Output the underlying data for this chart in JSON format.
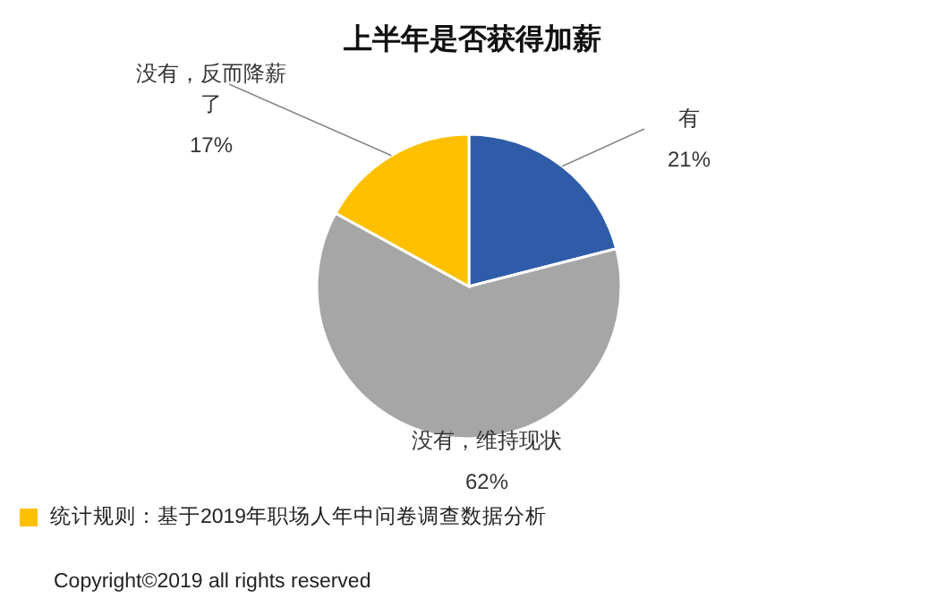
{
  "chart_data": {
    "type": "pie",
    "title": "上半年是否获得加薪",
    "categories": [
      "有",
      "没有，维持现状",
      "没有，反而降薪了"
    ],
    "values": [
      21,
      62,
      17
    ],
    "colors": [
      "#2f5ca8",
      "#a6a6a6",
      "#ffc000"
    ],
    "value_labels": [
      "21%",
      "62%",
      "17%"
    ],
    "annotations": [
      "统计规则：基于2019年职场人年中问卷调查数据分析",
      "Copyright©2019 all rights reserved"
    ]
  }
}
